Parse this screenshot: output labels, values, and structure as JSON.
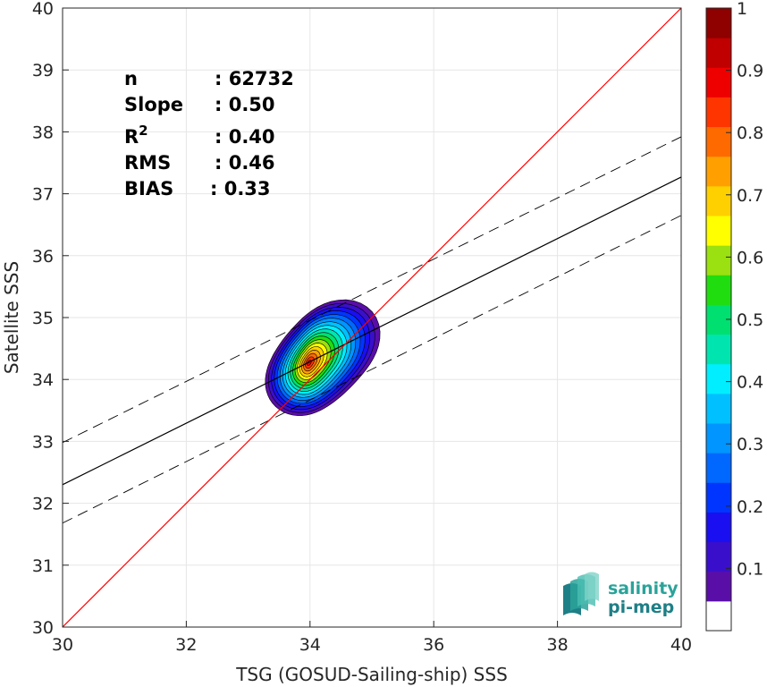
{
  "chart_data": {
    "type": "scatter",
    "subtype": "density-contour",
    "xlabel": "TSG (GOSUD-Sailing-ship) SSS",
    "ylabel": "Satellite SSS",
    "xlim": [
      30,
      40
    ],
    "ylim": [
      30,
      40
    ],
    "x_ticks": [
      "30",
      "32",
      "34",
      "36",
      "38",
      "40"
    ],
    "y_ticks": [
      "30",
      "31",
      "32",
      "33",
      "34",
      "35",
      "36",
      "37",
      "38",
      "39",
      "40"
    ],
    "grid": true,
    "stats": [
      {
        "label": "n",
        "sup": "",
        "value": ": 62732"
      },
      {
        "label": "Slope",
        "sup": "",
        "value": ": 0.50"
      },
      {
        "label": "R",
        "sup": "2",
        "value": ": 0.40"
      },
      {
        "label": "RMS",
        "sup": "",
        "value": ": 0.46"
      },
      {
        "label": "BIAS",
        "sup": "",
        "value": ": 0.33"
      }
    ],
    "reference_line": {
      "x": [
        30,
        40
      ],
      "y": [
        30,
        40
      ],
      "color": "#ff0000"
    },
    "fit_line": {
      "x": [
        30,
        40
      ],
      "y": [
        32.3,
        37.27
      ],
      "color": "#000000"
    },
    "fit_band_upper": {
      "x": [
        30,
        40
      ],
      "y": [
        32.98,
        37.92
      ],
      "color": "#000000",
      "style": "dashed"
    },
    "fit_band_lower": {
      "x": [
        30,
        40
      ],
      "y": [
        31.68,
        36.65
      ],
      "color": "#000000",
      "style": "dashed"
    },
    "density_peak": {
      "x": 33.95,
      "y": 34.25
    },
    "contour_levels": [
      0.05,
      0.1,
      0.15,
      0.2,
      0.25,
      0.3,
      0.35,
      0.4,
      0.45,
      0.5,
      0.55,
      0.6,
      0.65,
      0.7,
      0.75,
      0.8,
      0.85,
      0.9,
      0.95
    ],
    "colorbar": {
      "range": [
        0,
        1
      ],
      "tick_labels": [
        "0.1",
        "0.2",
        "0.3",
        "0.4",
        "0.5",
        "0.6",
        "0.7",
        "0.8",
        "0.9",
        "1"
      ],
      "tick_values": [
        0.1,
        0.2,
        0.3,
        0.4,
        0.5,
        0.6,
        0.7,
        0.8,
        0.9,
        1.0
      ],
      "colors": [
        "#ffffff",
        "#5a0ea8",
        "#3a0fcc",
        "#1a0ff0",
        "#0035ff",
        "#0068ff",
        "#0095ff",
        "#00c0ff",
        "#00eeff",
        "#00e5b0",
        "#00e070",
        "#20dd10",
        "#9be010",
        "#ffff00",
        "#ffd000",
        "#ffa000",
        "#ff6a00",
        "#ff3500",
        "#ee0000",
        "#c00000",
        "#8f0000"
      ]
    }
  },
  "logo": {
    "line1": "salinity",
    "line2": "pi-mep",
    "colors": {
      "top": "#2aa39a",
      "bottom": "#1f7f86"
    }
  }
}
